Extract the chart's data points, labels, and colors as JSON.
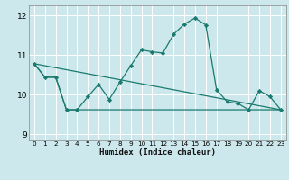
{
  "xlabel": "Humidex (Indice chaleur)",
  "bg_color": "#cce8ec",
  "grid_color": "#ffffff",
  "line_color": "#1a7a6e",
  "xlim": [
    -0.5,
    23.5
  ],
  "ylim": [
    8.85,
    12.25
  ],
  "xticks": [
    0,
    1,
    2,
    3,
    4,
    5,
    6,
    7,
    8,
    9,
    10,
    11,
    12,
    13,
    14,
    15,
    16,
    17,
    18,
    19,
    20,
    21,
    22,
    23
  ],
  "yticks": [
    9,
    10,
    11,
    12
  ],
  "line1_x": [
    0,
    1,
    2,
    3,
    4,
    5,
    6,
    7,
    8,
    9,
    10,
    11,
    12,
    13,
    14,
    15,
    16,
    17,
    18,
    19,
    20,
    21,
    22,
    23
  ],
  "line1_y": [
    10.78,
    10.44,
    10.44,
    9.62,
    9.62,
    9.95,
    10.26,
    9.88,
    10.32,
    10.73,
    11.13,
    11.08,
    11.05,
    11.52,
    11.78,
    11.93,
    11.76,
    10.13,
    9.82,
    9.78,
    9.62,
    10.1,
    9.95,
    9.62
  ],
  "line2_y": [
    10.78,
    10.44,
    10.44,
    9.62,
    9.62,
    9.62,
    9.62,
    9.62,
    9.62,
    9.62,
    9.62,
    9.62,
    9.62,
    9.62,
    9.62,
    9.62,
    9.62,
    9.62,
    9.62,
    9.62,
    9.62,
    9.62,
    9.62,
    9.62
  ],
  "line3_x": [
    0,
    23
  ],
  "line3_y": [
    10.78,
    9.62
  ],
  "ytick_labels": [
    "9",
    "10",
    "11",
    "12"
  ]
}
